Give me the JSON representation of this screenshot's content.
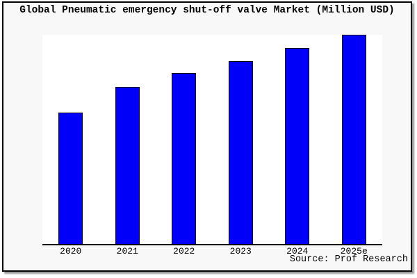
{
  "title": "Global Pneumatic emergency shut-off valve Market (Million USD)",
  "source": "Source: Prof Research",
  "colors": {
    "bar_fill": "#0000fa",
    "bar_border": "#000000",
    "axis": "#000000",
    "plot_bg": "#ffffff",
    "panel_bg": "#f8f8f8"
  },
  "chart_data": {
    "type": "bar",
    "title": "Global Pneumatic emergency shut-off valve Market (Million USD)",
    "categories": [
      "2020",
      "2021",
      "2022",
      "2023",
      "2024",
      "2025e"
    ],
    "values": [
      62.8,
      75.2,
      81.7,
      87.5,
      93.7,
      100
    ],
    "xlabel": "",
    "ylabel": "",
    "ylim": [
      0,
      100
    ],
    "units": "relative bar height, % of tallest bar (no numeric y-axis shown in image)",
    "legend": "none",
    "grid": false,
    "source": "Source: Prof Research"
  }
}
